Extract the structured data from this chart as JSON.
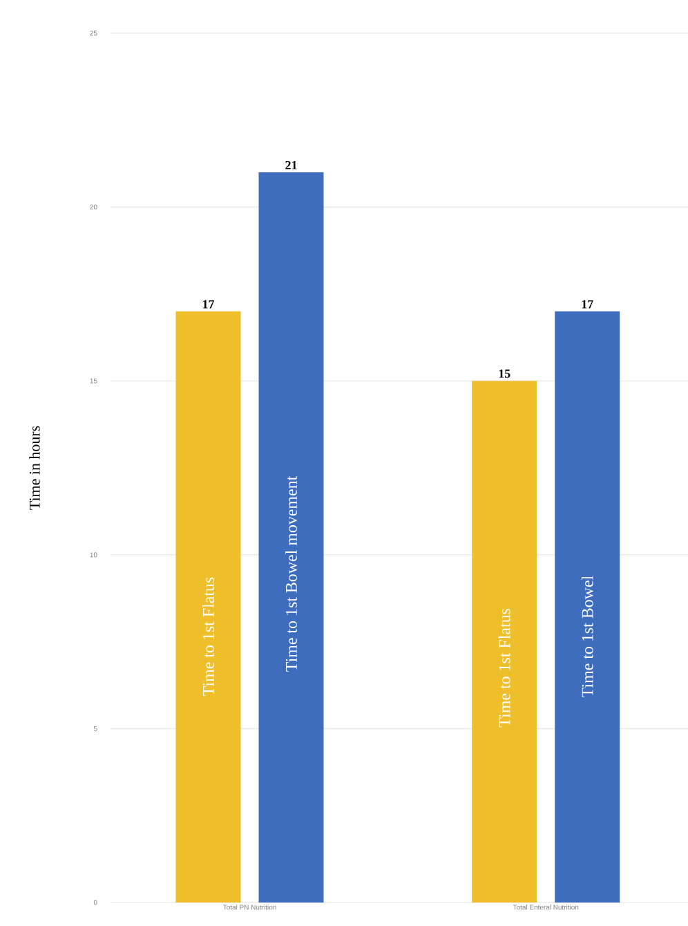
{
  "chart_data": {
    "type": "bar",
    "ylabel": "Time in hours",
    "categories": [
      "Total PN Nutrition",
      "Total Enteral Nutrition"
    ],
    "series": [
      {
        "color": "#efbe2b",
        "values": [
          17,
          15
        ]
      },
      {
        "color": "#3e6dbd",
        "values": [
          21,
          17
        ]
      }
    ],
    "ylim": [
      0,
      25
    ],
    "yticks": [
      0,
      5,
      10,
      15,
      20,
      25
    ],
    "grid": "y",
    "data_labels": true,
    "annotations": [
      "Time to 1st Flatus",
      "Time to 1st Bowel movement",
      "Time to 1st Flatus",
      "Time to 1st Bowel"
    ]
  }
}
